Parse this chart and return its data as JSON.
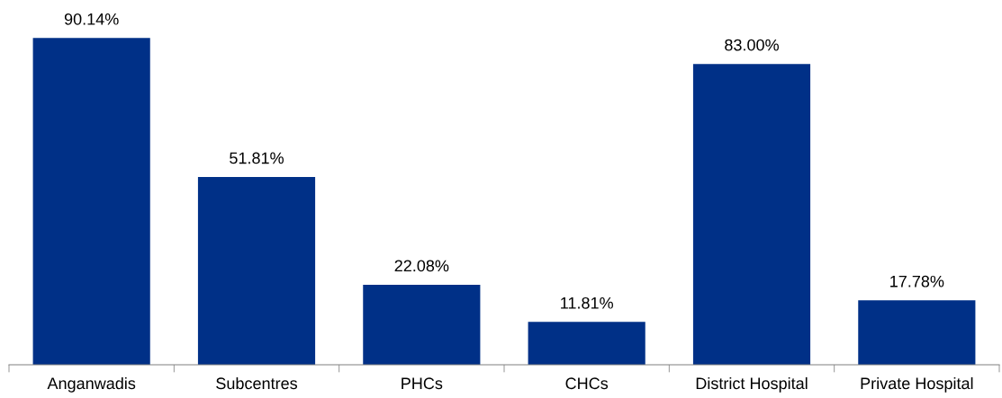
{
  "chart_data": {
    "type": "bar",
    "categories": [
      "Anganwadis",
      "Subcentres",
      "PHCs",
      "CHCs",
      "District Hospital",
      "Private Hospital"
    ],
    "values": [
      90.14,
      51.81,
      22.08,
      11.81,
      83.0,
      17.78
    ],
    "value_labels": [
      "90.14%",
      "51.81%",
      "22.08%",
      "11.81%",
      "83.00%",
      "17.78%"
    ],
    "color": "#003087",
    "grid": false,
    "legend": false
  }
}
